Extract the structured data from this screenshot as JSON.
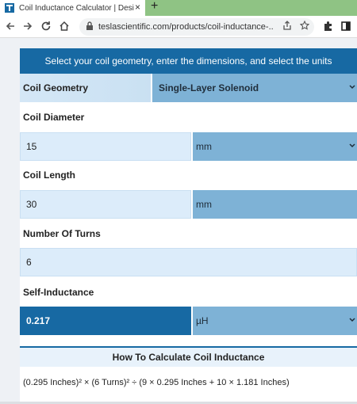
{
  "browser": {
    "tab_title": "Coil Inductance Calculator | Desi",
    "new_tab_symbol": "+",
    "close_symbol": "×",
    "url": "teslascientific.com/products/coil-inductance-..."
  },
  "calculator": {
    "header": "Select your coil geometry, enter the dimensions, and select the units",
    "geometry": {
      "label": "Coil Geometry",
      "value": "Single-Layer Solenoid"
    },
    "diameter": {
      "label": "Coil Diameter",
      "value": "15",
      "unit": "mm"
    },
    "length": {
      "label": "Coil Length",
      "value": "30",
      "unit": "mm"
    },
    "turns": {
      "label": "Number Of Turns",
      "value": "6"
    },
    "inductance": {
      "label": "Self-Inductance",
      "value": "0.217",
      "unit": "µH"
    }
  },
  "how_to": {
    "title": "How To Calculate Coil Inductance",
    "formula": "(0.295 Inches)² × (6 Turns)² ÷ (9 × 0.295 Inches + 10 × 1.181 Inches)"
  },
  "colors": {
    "accent": "#1769a3",
    "tab_strip": "#8fc384",
    "select_bg": "#7eb2d6"
  }
}
